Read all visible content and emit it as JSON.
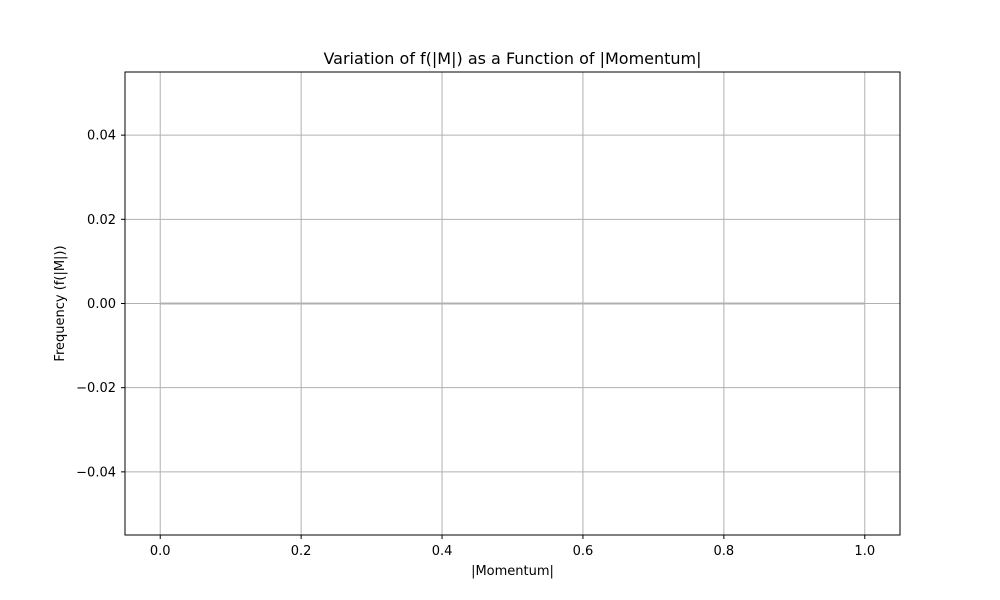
{
  "chart_data": {
    "type": "line",
    "title": "Variation of f(|M|) as a Function of |Momentum|",
    "xlabel": "|Momentum|",
    "ylabel": "Frequency (f(|M|))",
    "xlim": [
      -0.05,
      1.05
    ],
    "ylim": [
      -0.055,
      0.055
    ],
    "xticks": [
      0.0,
      0.2,
      0.4,
      0.6,
      0.8,
      1.0
    ],
    "xtick_labels": [
      "0.0",
      "0.2",
      "0.4",
      "0.6",
      "0.8",
      "1.0"
    ],
    "yticks": [
      0.04,
      0.02,
      0.0,
      -0.02,
      -0.04
    ],
    "ytick_labels": [
      "0.04",
      "0.02",
      "0.00",
      "−0.02",
      "−0.04"
    ],
    "grid": true,
    "series": [
      {
        "color": "#b0b0b0",
        "x": [
          0.0,
          0.1,
          0.2,
          0.3,
          0.4,
          0.5,
          0.6,
          0.7,
          0.8,
          0.9,
          1.0
        ],
        "y": [
          0,
          0,
          0,
          0,
          0,
          0,
          0,
          0,
          0,
          0,
          0
        ]
      }
    ]
  }
}
